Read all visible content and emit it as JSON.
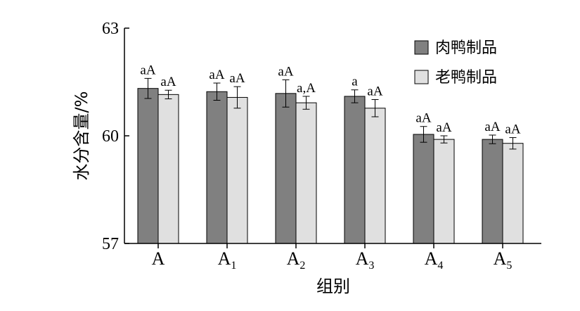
{
  "chart_data": {
    "type": "bar",
    "title": "",
    "xlabel": "组别",
    "ylabel": "水分含量/%",
    "ylim": [
      57,
      63
    ],
    "yticks": [
      "57",
      "60",
      "63"
    ],
    "grid": false,
    "legend_position": "top-right",
    "categories": [
      {
        "base": "A",
        "sub": ""
      },
      {
        "base": "A",
        "sub": "1"
      },
      {
        "base": "A",
        "sub": "2"
      },
      {
        "base": "A",
        "sub": "3"
      },
      {
        "base": "A",
        "sub": "4"
      },
      {
        "base": "A",
        "sub": "5"
      }
    ],
    "series": [
      {
        "name": "肉鸭制品",
        "color": "#808080",
        "values": [
          61.32,
          61.23,
          61.18,
          61.1,
          60.04,
          59.9
        ],
        "errors": [
          0.28,
          0.24,
          0.38,
          0.18,
          0.22,
          0.12
        ],
        "labels": [
          "aA",
          "aA",
          "aA",
          "a",
          "aA",
          "aA"
        ]
      },
      {
        "name": "老鸭制品",
        "color": "#e0e0e0",
        "values": [
          61.15,
          61.07,
          60.92,
          60.77,
          59.9,
          59.79
        ],
        "errors": [
          0.12,
          0.3,
          0.18,
          0.24,
          0.1,
          0.16
        ],
        "labels": [
          "aA",
          "aA",
          "a,A",
          "aA",
          "aA",
          "aA"
        ]
      }
    ]
  }
}
